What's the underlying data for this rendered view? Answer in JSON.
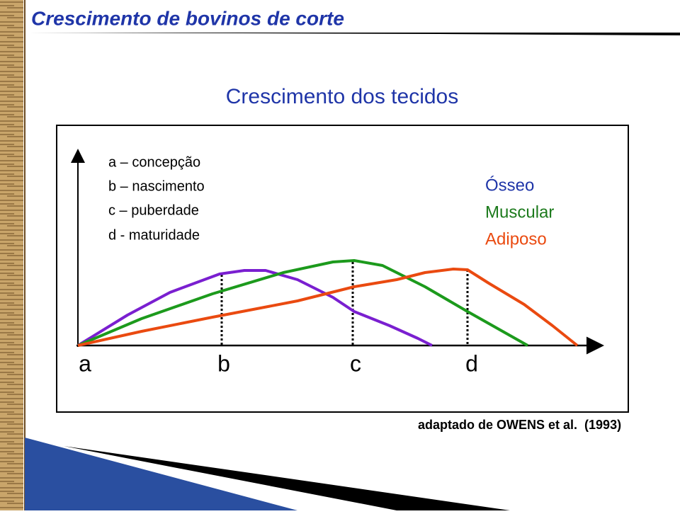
{
  "header": {
    "title": "Crescimento de bovinos de corte"
  },
  "subtitle": "Crescimento dos tecidos",
  "stages": [
    "a – concepção",
    "b – nascimento",
    "c – puberdade",
    "d - maturidade"
  ],
  "axis_labels": [
    "a",
    "b",
    "c",
    "d"
  ],
  "tissues": [
    "Ósseo",
    "Muscular",
    "Adiposo"
  ],
  "source": "adaptado de OWENS et al.  (1993)"
}
